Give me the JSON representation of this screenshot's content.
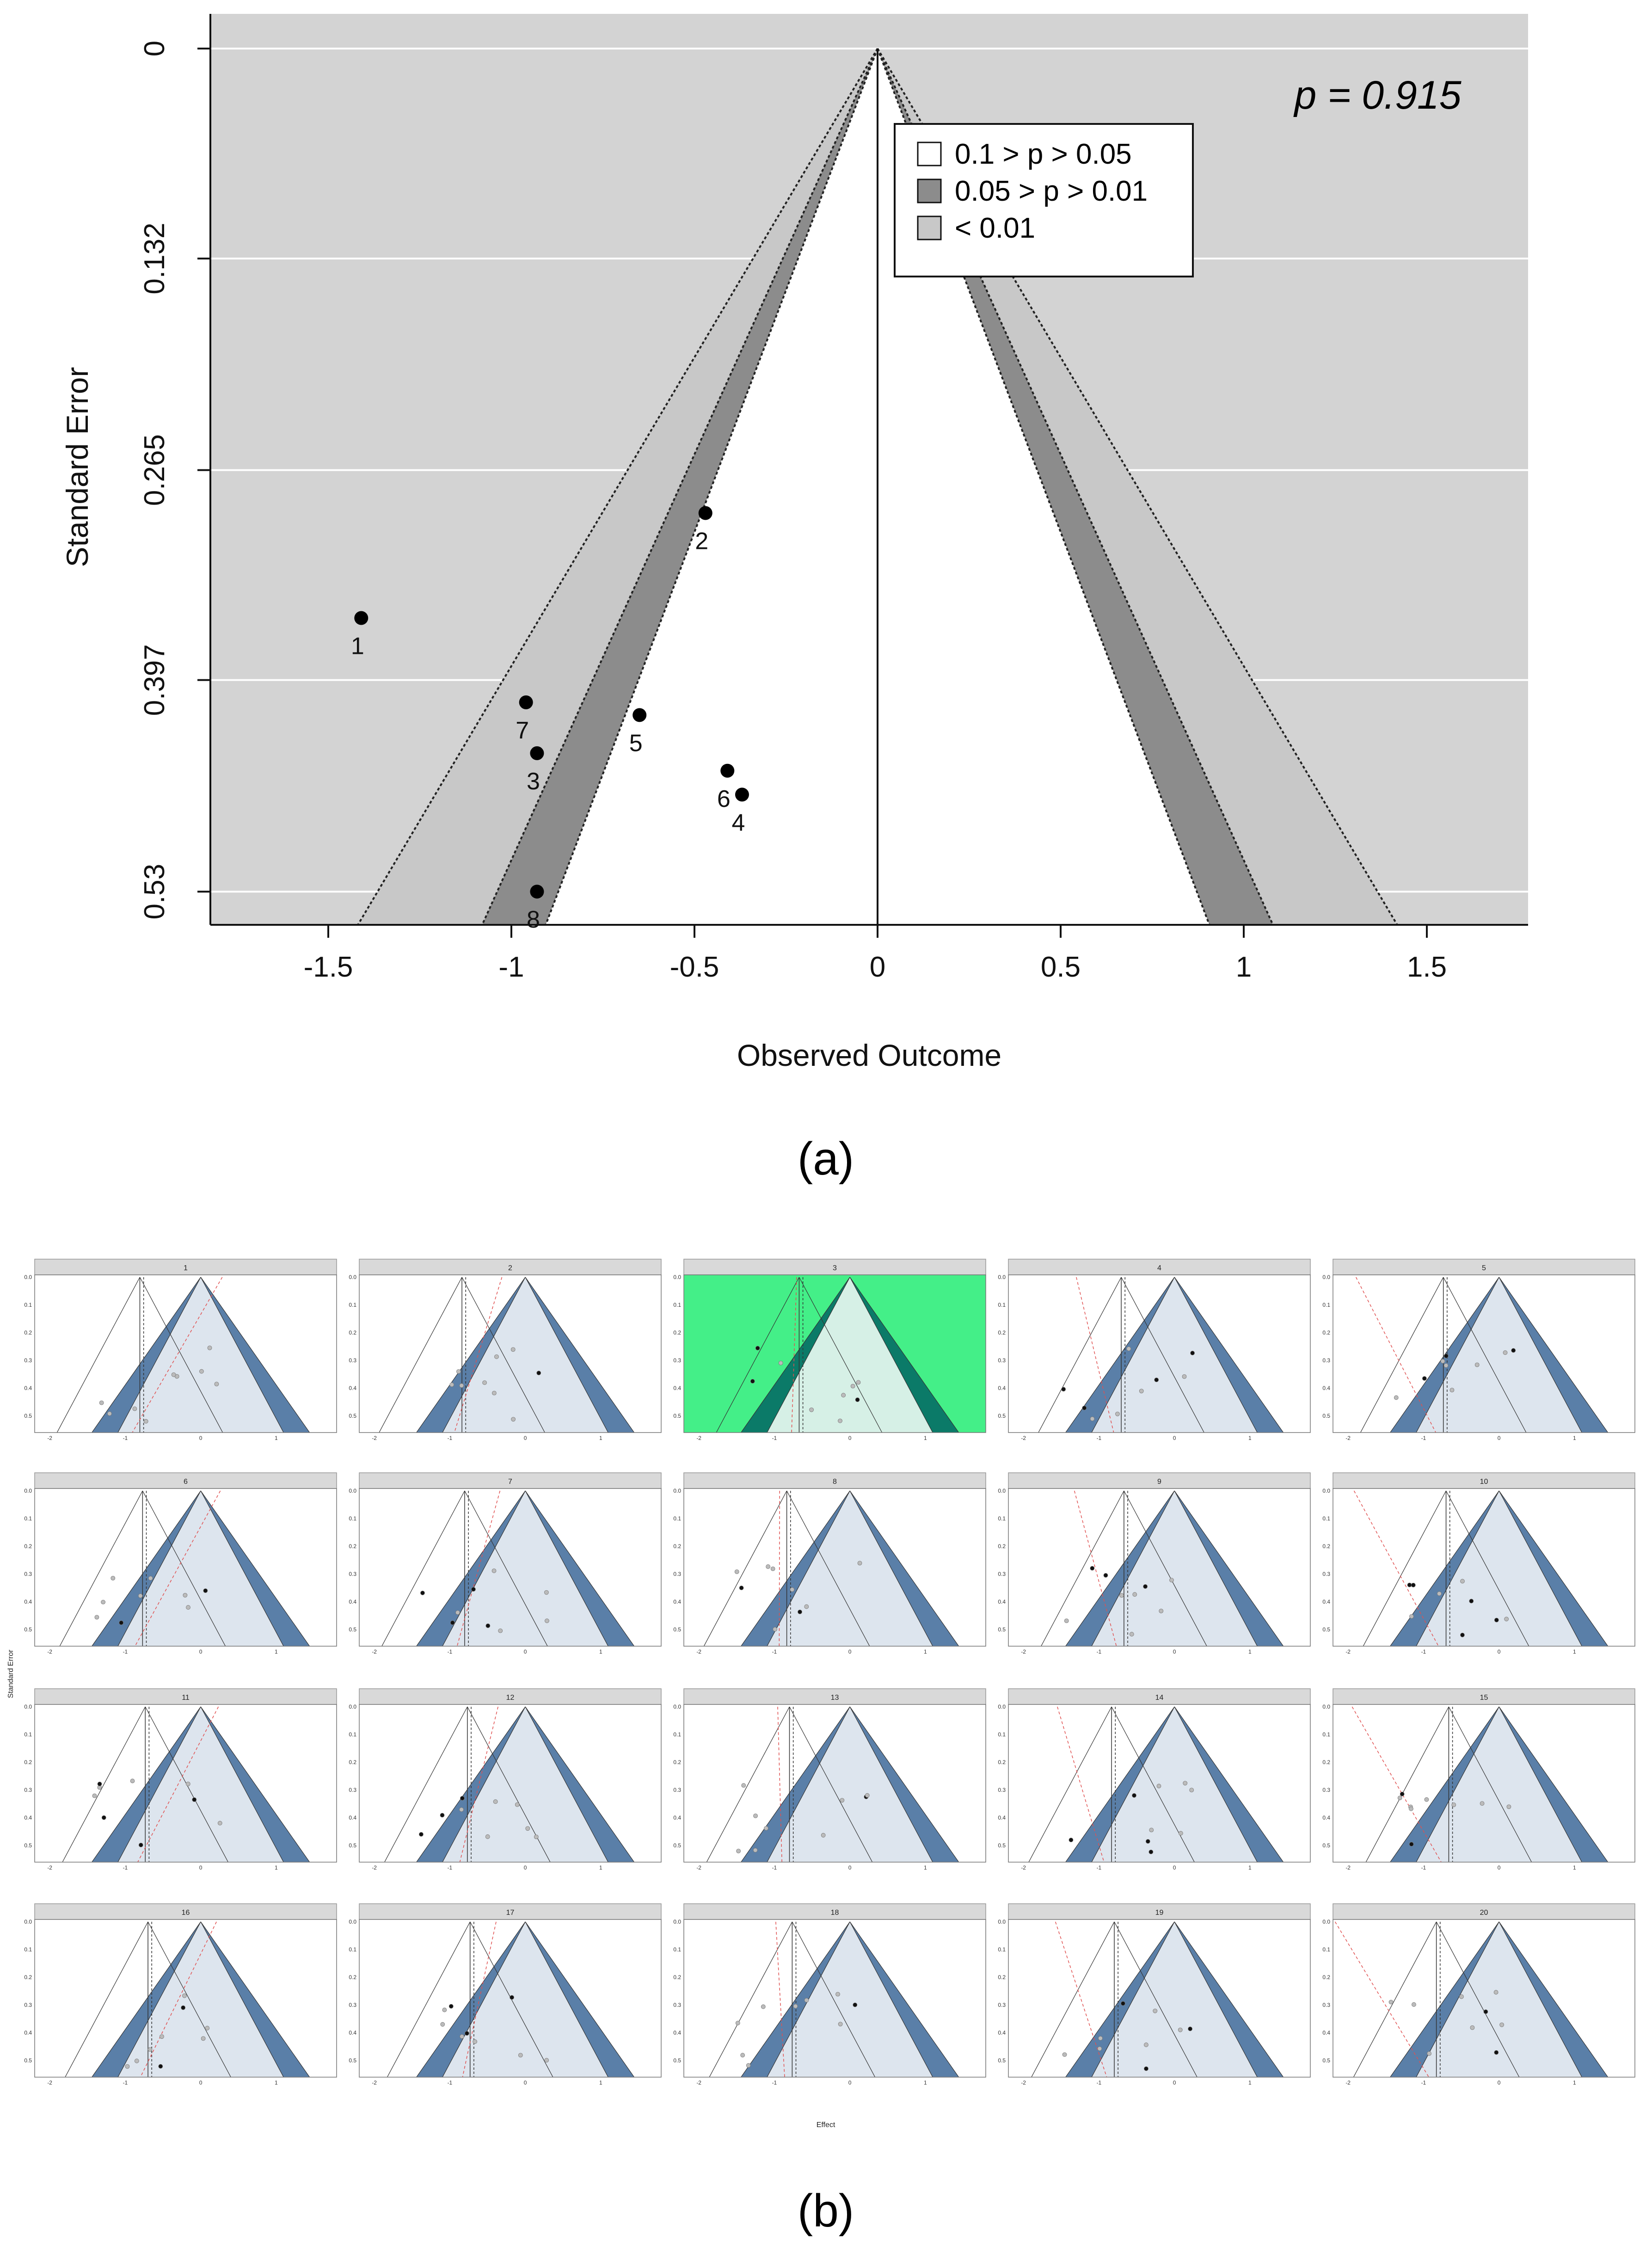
{
  "chart_data": [
    {
      "type": "scatter",
      "subtype": "contour-enhanced funnel plot",
      "xlabel": "Observed Outcome",
      "ylabel": "Standard Error",
      "xlim": [
        -1.8,
        1.8
      ],
      "ylim": [
        0.55,
        0
      ],
      "x_ticks": [
        "-1.5",
        "-1",
        "-0.5",
        "0",
        "0.5",
        "1",
        "1.5"
      ],
      "x_tick_values": [
        -1.5,
        -1,
        -0.5,
        0,
        0.5,
        1,
        1.5
      ],
      "y_ticks": [
        "0",
        "0.132",
        "0.265",
        "0.397",
        "0.53"
      ],
      "y_tick_values": [
        0,
        0.132,
        0.265,
        0.397,
        0.53
      ],
      "y_reversed": true,
      "grid": true,
      "center": 0,
      "annotation": "p = 0.915",
      "legend_position": "top-right",
      "legend": [
        {
          "label": "0.1 > p > 0.05",
          "color": "#ffffff"
        },
        {
          "label": "0.05 > p > 0.01",
          "color": "#8c8c8c"
        },
        {
          "label": "< 0.01",
          "color": "#c8c8c8"
        }
      ],
      "points": [
        {
          "label": "1",
          "x": -1.41,
          "y": 0.358
        },
        {
          "label": "2",
          "x": -0.47,
          "y": 0.292
        },
        {
          "label": "3",
          "x": -0.93,
          "y": 0.443
        },
        {
          "label": "4",
          "x": -0.37,
          "y": 0.469
        },
        {
          "label": "5",
          "x": -0.65,
          "y": 0.419
        },
        {
          "label": "6",
          "x": -0.41,
          "y": 0.454
        },
        {
          "label": "7",
          "x": -0.96,
          "y": 0.411
        },
        {
          "label": "8",
          "x": -0.93,
          "y": 0.53
        }
      ],
      "caption": "(a)"
    },
    {
      "type": "scatter",
      "subtype": "lineup of funnel plots",
      "xlabel": "Effect",
      "ylabel": "Standard Error",
      "panel_labels": [
        "1",
        "2",
        "3",
        "4",
        "5",
        "6",
        "7",
        "8",
        "9",
        "10",
        "11",
        "12",
        "13",
        "14",
        "15",
        "16",
        "17",
        "18",
        "19",
        "20"
      ],
      "highlighted_panel": "3",
      "x_ticks": [
        "-2",
        "-1",
        "0",
        "1"
      ],
      "y_ticks": [
        "0.0",
        "0.1",
        "0.2",
        "0.3",
        "0.4",
        "0.5"
      ],
      "colors": {
        "highlight": "#44ef88",
        "contour": "#5a7fa8",
        "funnel_fill": "#dde5ee",
        "dashed_line": "#e05050"
      },
      "caption": "(b)"
    }
  ]
}
